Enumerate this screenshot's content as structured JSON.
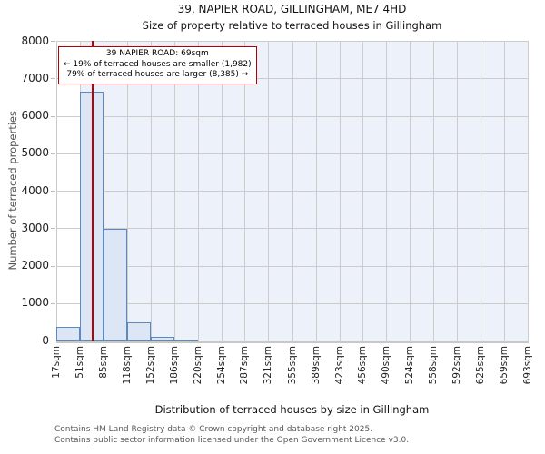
{
  "chart_data": {
    "type": "bar",
    "title": "39, NAPIER ROAD, GILLINGHAM, ME7 4HD",
    "subtitle": "Size of property relative to terraced houses in Gillingham",
    "xlabel": "Distribution of terraced houses by size in Gillingham",
    "ylabel": "Number of terraced properties",
    "bin_edges_sqm": [
      17,
      51,
      85,
      118,
      152,
      186,
      220,
      254,
      287,
      321,
      355,
      389,
      423,
      456,
      490,
      524,
      558,
      592,
      625,
      659,
      693
    ],
    "x_tick_labels": [
      "17sqm",
      "51sqm",
      "85sqm",
      "118sqm",
      "152sqm",
      "186sqm",
      "220sqm",
      "254sqm",
      "287sqm",
      "321sqm",
      "355sqm",
      "389sqm",
      "423sqm",
      "456sqm",
      "490sqm",
      "524sqm",
      "558sqm",
      "592sqm",
      "625sqm",
      "659sqm",
      "693sqm"
    ],
    "values": [
      370,
      6650,
      2980,
      490,
      100,
      25,
      0,
      0,
      0,
      0,
      0,
      0,
      0,
      0,
      0,
      0,
      0,
      0,
      0,
      0
    ],
    "ylim": [
      0,
      8000
    ],
    "y_ticks": [
      0,
      1000,
      2000,
      3000,
      4000,
      5000,
      6000,
      7000,
      8000
    ],
    "grid": true,
    "legend": "none",
    "marker": {
      "label": "39 NAPIER ROAD",
      "value_sqm": 69
    },
    "shaded_region": {
      "from_sqm": 51,
      "to_sqm": 693
    },
    "annotation": {
      "line1": "39 NAPIER ROAD: 69sqm",
      "line2": "← 19% of terraced houses are smaller (1,982)",
      "line3": "79% of terraced houses are larger (8,385) →"
    },
    "colors": {
      "bar_fill": "#dce6f4",
      "bar_edge": "#5b89c4",
      "grid_line": "#cccccc",
      "shaded_region_fill": "#edf1fa",
      "marker_line": "#c00000",
      "annotation_border": "#b00000",
      "plot_bg": "#ffffff"
    }
  },
  "footer": {
    "line1": "Contains HM Land Registry data © Crown copyright and database right 2025.",
    "line2": "Contains public sector information licensed under the Open Government Licence v3.0."
  }
}
